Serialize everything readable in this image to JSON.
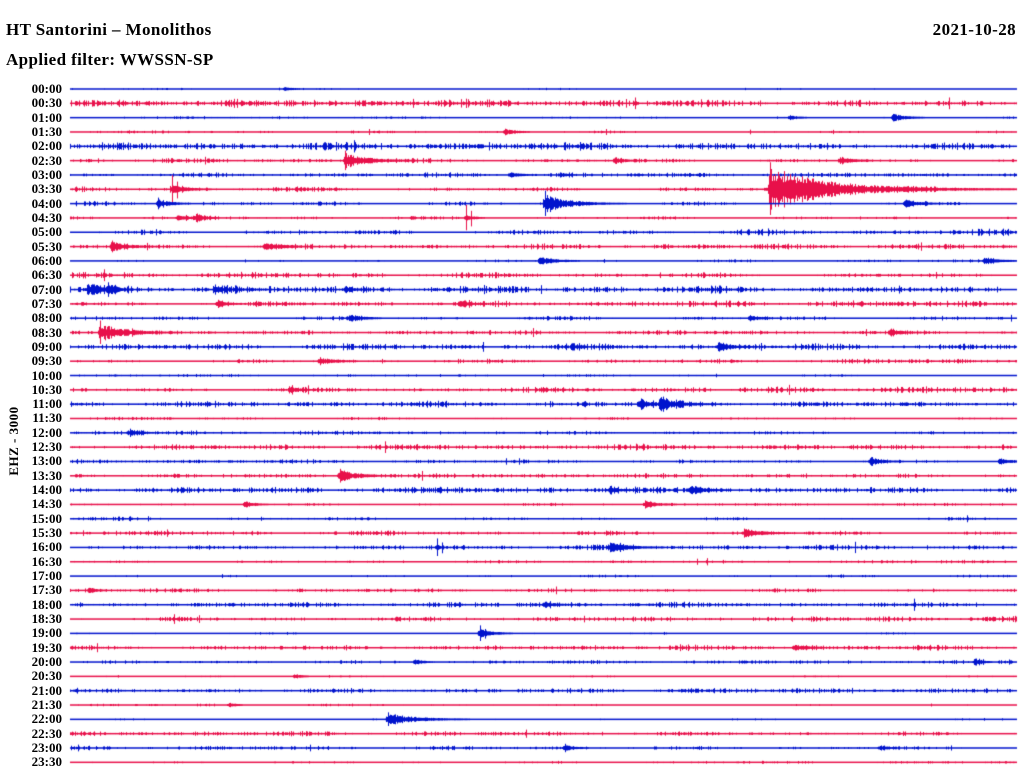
{
  "header": {
    "station": "HT Santorini – Monolithos",
    "filter": "Applied filter: WWSSN-SP",
    "date": "2021-10-28",
    "channel_scale": "EHZ - 3000"
  },
  "chart_data": {
    "type": "helicorder",
    "title": "HT Santorini – Monolithos",
    "subtitle": "Applied filter: WWSSN-SP",
    "date": "2021-10-28",
    "channel": "EHZ",
    "scale": "3000",
    "minutes_per_line": 30,
    "first_line": "00:00",
    "last_line": "23:30",
    "legend_position": "none",
    "grid": false,
    "colors": {
      "blue": "#0013cd",
      "red": "#e8104a"
    },
    "rows": [
      {
        "t": "00:00",
        "color": "blue",
        "noise": 0.45,
        "events": [
          {
            "pos": 0.227,
            "amp": 1.5,
            "decay": 6
          }
        ]
      },
      {
        "t": "00:30",
        "color": "red",
        "noise": 1.7,
        "events": []
      },
      {
        "t": "01:00",
        "color": "blue",
        "noise": 0.6,
        "events": [
          {
            "pos": 0.761,
            "amp": 2,
            "decay": 6
          },
          {
            "pos": 0.87,
            "amp": 3.5,
            "decay": 10
          }
        ]
      },
      {
        "t": "01:30",
        "color": "red",
        "noise": 0.7,
        "events": [
          {
            "pos": 0.46,
            "amp": 3,
            "decay": 8
          }
        ]
      },
      {
        "t": "02:00",
        "color": "blue",
        "noise": 1.6,
        "events": []
      },
      {
        "t": "02:30",
        "color": "red",
        "noise": 1.1,
        "events": [
          {
            "pos": 0.291,
            "amp": 8,
            "decay": 18,
            "spike": 10
          },
          {
            "pos": 0.576,
            "amp": 3,
            "decay": 8
          },
          {
            "pos": 0.814,
            "amp": 3.5,
            "decay": 10
          }
        ]
      },
      {
        "t": "03:00",
        "color": "blue",
        "noise": 1.0,
        "events": [
          {
            "pos": 0.465,
            "amp": 2.5,
            "decay": 8
          },
          {
            "pos": 0.518,
            "amp": 2,
            "decay": 6
          }
        ]
      },
      {
        "t": "03:30",
        "color": "red",
        "noise": 1.4,
        "events": [
          {
            "pos": 0.108,
            "amp": 6,
            "decay": 10,
            "spike": 14
          },
          {
            "pos": 0.74,
            "amp": 22,
            "decay": 55,
            "spike": 27
          }
        ]
      },
      {
        "t": "04:00",
        "color": "blue",
        "noise": 1.2,
        "events": [
          {
            "pos": 0.093,
            "amp": 4,
            "decay": 10,
            "spike": 6
          },
          {
            "pos": 0.502,
            "amp": 9,
            "decay": 20,
            "spike": 13
          },
          {
            "pos": 0.883,
            "amp": 3.5,
            "decay": 12
          }
        ]
      },
      {
        "t": "04:30",
        "color": "red",
        "noise": 1.1,
        "events": [
          {
            "pos": 0.114,
            "amp": 3,
            "decay": 8
          },
          {
            "pos": 0.133,
            "amp": 3,
            "decay": 8
          },
          {
            "pos": 0.419,
            "amp": 3,
            "decay": 6,
            "spike": 13
          }
        ]
      },
      {
        "t": "05:00",
        "color": "blue",
        "noise": 1.5,
        "events": []
      },
      {
        "t": "05:30",
        "color": "red",
        "noise": 1.2,
        "events": [
          {
            "pos": 0.044,
            "amp": 4.5,
            "decay": 14,
            "spike": 6
          },
          {
            "pos": 0.206,
            "amp": 3.5,
            "decay": 16
          }
        ]
      },
      {
        "t": "06:00",
        "color": "blue",
        "noise": 0.7,
        "events": [
          {
            "pos": 0.497,
            "amp": 4,
            "decay": 12
          },
          {
            "pos": 0.967,
            "amp": 3.5,
            "decay": 10
          }
        ]
      },
      {
        "t": "06:30",
        "color": "red",
        "noise": 1.6,
        "events": []
      },
      {
        "t": "07:00",
        "color": "blue",
        "noise": 1.7,
        "events": [
          {
            "pos": 0.019,
            "amp": 5,
            "decay": 12
          },
          {
            "pos": 0.04,
            "amp": 3.5,
            "decay": 8
          },
          {
            "pos": 0.153,
            "amp": 3.5,
            "decay": 10
          },
          {
            "pos": 0.291,
            "amp": 3,
            "decay": 8
          }
        ]
      },
      {
        "t": "07:30",
        "color": "red",
        "noise": 1.5,
        "events": [
          {
            "pos": 0.156,
            "amp": 2.5,
            "decay": 8
          },
          {
            "pos": 0.412,
            "amp": 2.5,
            "decay": 8
          }
        ]
      },
      {
        "t": "08:00",
        "color": "blue",
        "noise": 1.4,
        "events": [
          {
            "pos": 0.296,
            "amp": 3.5,
            "decay": 10
          },
          {
            "pos": 0.719,
            "amp": 2.5,
            "decay": 8
          }
        ]
      },
      {
        "t": "08:30",
        "color": "red",
        "noise": 1.0,
        "events": [
          {
            "pos": 0.032,
            "amp": 9,
            "decay": 20,
            "spike": 12
          },
          {
            "pos": 0.867,
            "amp": 3.5,
            "decay": 10
          }
        ]
      },
      {
        "t": "09:00",
        "color": "blue",
        "noise": 1.4,
        "events": [
          {
            "pos": 0.685,
            "amp": 4,
            "decay": 12
          }
        ]
      },
      {
        "t": "09:30",
        "color": "red",
        "noise": 1.1,
        "events": [
          {
            "pos": 0.264,
            "amp": 3.5,
            "decay": 12
          }
        ]
      },
      {
        "t": "10:00",
        "color": "blue",
        "noise": 0.7,
        "events": []
      },
      {
        "t": "10:30",
        "color": "red",
        "noise": 1.4,
        "events": [
          {
            "pos": 0.233,
            "amp": 3,
            "decay": 8
          }
        ]
      },
      {
        "t": "11:00",
        "color": "blue",
        "noise": 1.3,
        "events": [
          {
            "pos": 0.603,
            "amp": 4.5,
            "decay": 8
          },
          {
            "pos": 0.624,
            "amp": 6,
            "decay": 16
          }
        ]
      },
      {
        "t": "11:30",
        "color": "red",
        "noise": 0.8,
        "events": []
      },
      {
        "t": "12:00",
        "color": "blue",
        "noise": 1.1,
        "events": [
          {
            "pos": 0.063,
            "amp": 3,
            "decay": 8
          }
        ]
      },
      {
        "t": "12:30",
        "color": "red",
        "noise": 1.3,
        "events": []
      },
      {
        "t": "13:00",
        "color": "blue",
        "noise": 0.9,
        "events": [
          {
            "pos": 0.846,
            "amp": 4,
            "decay": 10
          },
          {
            "pos": 0.983,
            "amp": 3,
            "decay": 8
          }
        ]
      },
      {
        "t": "13:30",
        "color": "red",
        "noise": 1.0,
        "events": [
          {
            "pos": 0.285,
            "amp": 6,
            "decay": 14,
            "spike": 7
          }
        ]
      },
      {
        "t": "14:00",
        "color": "blue",
        "noise": 1.4,
        "events": [
          {
            "pos": 0.571,
            "amp": 3,
            "decay": 8
          },
          {
            "pos": 0.655,
            "amp": 5,
            "decay": 12
          }
        ]
      },
      {
        "t": "14:30",
        "color": "red",
        "noise": 0.8,
        "events": [
          {
            "pos": 0.185,
            "amp": 3,
            "decay": 8
          },
          {
            "pos": 0.608,
            "amp": 3.5,
            "decay": 10
          }
        ]
      },
      {
        "t": "15:00",
        "color": "blue",
        "noise": 1.0,
        "events": []
      },
      {
        "t": "15:30",
        "color": "red",
        "noise": 1.1,
        "events": [
          {
            "pos": 0.713,
            "amp": 4,
            "decay": 14
          }
        ]
      },
      {
        "t": "16:00",
        "color": "blue",
        "noise": 1.1,
        "events": [
          {
            "pos": 0.388,
            "amp": 2,
            "decay": 3,
            "spike": 9
          },
          {
            "pos": 0.571,
            "amp": 4.5,
            "decay": 16
          }
        ]
      },
      {
        "t": "16:30",
        "color": "red",
        "noise": 0.8,
        "events": []
      },
      {
        "t": "17:00",
        "color": "blue",
        "noise": 0.8,
        "events": []
      },
      {
        "t": "17:30",
        "color": "red",
        "noise": 0.9,
        "events": [
          {
            "pos": 0.021,
            "amp": 2.5,
            "decay": 6
          }
        ]
      },
      {
        "t": "18:00",
        "color": "blue",
        "noise": 1.1,
        "events": [
          {
            "pos": 0.502,
            "amp": 3,
            "decay": 8
          }
        ]
      },
      {
        "t": "18:30",
        "color": "red",
        "noise": 1.2,
        "events": []
      },
      {
        "t": "19:00",
        "color": "blue",
        "noise": 0.7,
        "events": [
          {
            "pos": 0.433,
            "amp": 4,
            "decay": 10,
            "spike": 8
          }
        ]
      },
      {
        "t": "19:30",
        "color": "red",
        "noise": 1.1,
        "events": [
          {
            "pos": 0.766,
            "amp": 3,
            "decay": 10
          }
        ]
      },
      {
        "t": "20:00",
        "color": "blue",
        "noise": 0.9,
        "events": [
          {
            "pos": 0.365,
            "amp": 2.5,
            "decay": 6
          },
          {
            "pos": 0.957,
            "amp": 2.5,
            "decay": 6
          }
        ]
      },
      {
        "t": "20:30",
        "color": "red",
        "noise": 0.7,
        "events": [
          {
            "pos": 0.238,
            "amp": 2,
            "decay": 5
          }
        ]
      },
      {
        "t": "21:00",
        "color": "blue",
        "noise": 1.2,
        "events": []
      },
      {
        "t": "21:30",
        "color": "red",
        "noise": 0.7,
        "events": [
          {
            "pos": 0.169,
            "amp": 2,
            "decay": 5
          }
        ]
      },
      {
        "t": "22:00",
        "color": "blue",
        "noise": 0.6,
        "events": [
          {
            "pos": 0.336,
            "amp": 6,
            "decay": 22,
            "spike": 7
          }
        ]
      },
      {
        "t": "22:30",
        "color": "red",
        "noise": 1.1,
        "events": []
      },
      {
        "t": "23:00",
        "color": "blue",
        "noise": 0.9,
        "events": [
          {
            "pos": 0.523,
            "amp": 3,
            "decay": 8
          },
          {
            "pos": 0.856,
            "amp": 2.5,
            "decay": 6
          }
        ]
      },
      {
        "t": "23:30",
        "color": "red",
        "noise": 0.6,
        "events": []
      }
    ]
  }
}
